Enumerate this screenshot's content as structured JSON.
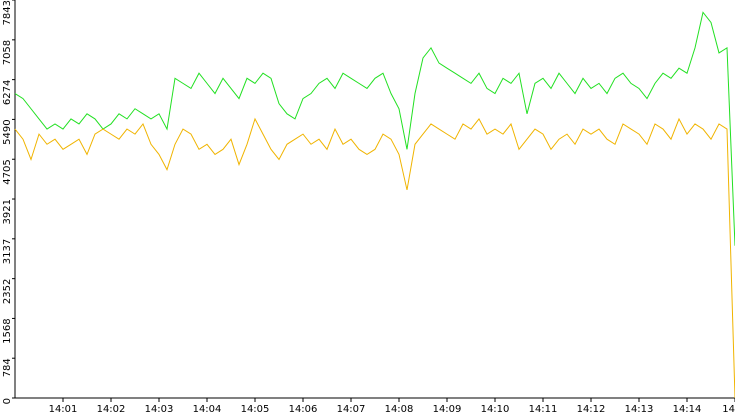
{
  "chart_data": {
    "type": "line",
    "x": [
      0,
      10,
      20,
      30,
      40,
      50,
      60,
      70,
      80,
      90,
      100,
      110,
      120,
      130,
      140,
      150,
      160,
      170,
      180,
      190,
      200,
      210,
      220,
      230,
      240,
      250,
      260,
      270,
      280,
      290,
      300,
      310,
      320,
      330,
      340,
      350,
      360,
      370,
      380,
      390,
      400,
      410,
      420,
      430,
      440,
      450,
      460,
      470,
      480,
      490,
      500,
      510,
      520,
      530,
      540,
      550,
      560,
      570,
      580,
      590,
      600,
      610,
      620,
      630,
      640,
      650,
      660,
      670,
      680,
      690,
      700,
      710,
      720,
      730,
      740,
      750,
      760,
      770,
      780,
      790,
      800,
      810,
      820,
      830,
      840,
      850,
      860,
      870,
      880,
      890,
      900
    ],
    "series": [
      {
        "color": "#22e022",
        "values": [
          6000,
          5900,
          5700,
          5500,
          5300,
          5400,
          5300,
          5500,
          5400,
          5600,
          5500,
          5300,
          5400,
          5600,
          5500,
          5700,
          5600,
          5500,
          5600,
          5300,
          6300,
          6200,
          6100,
          6400,
          6200,
          6000,
          6300,
          6100,
          5900,
          6300,
          6200,
          6400,
          6300,
          5800,
          5600,
          5500,
          5900,
          6000,
          6200,
          6300,
          6100,
          6400,
          6300,
          6200,
          6100,
          6300,
          6400,
          6000,
          5700,
          4900,
          6000,
          6700,
          6900,
          6600,
          6500,
          6400,
          6300,
          6200,
          6400,
          6100,
          6000,
          6300,
          6200,
          6400,
          5600,
          6200,
          6300,
          6100,
          6400,
          6200,
          6000,
          6300,
          6100,
          6200,
          6000,
          6300,
          6400,
          6200,
          6100,
          5900,
          6200,
          6400,
          6300,
          6500,
          6400,
          6900,
          7600,
          7400,
          6800,
          6900,
          3000
        ]
      },
      {
        "color": "#f0b400",
        "values": [
          5300,
          5100,
          4700,
          5200,
          5000,
          5100,
          4900,
          5000,
          5100,
          4800,
          5200,
          5300,
          5200,
          5100,
          5300,
          5200,
          5400,
          5000,
          4800,
          4500,
          5000,
          5300,
          5200,
          4900,
          5000,
          4800,
          4900,
          5100,
          4600,
          5000,
          5500,
          5200,
          4900,
          4700,
          5000,
          5100,
          5200,
          5000,
          5100,
          4900,
          5300,
          5000,
          5100,
          4900,
          4800,
          4900,
          5200,
          5100,
          4800,
          4100,
          5000,
          5200,
          5400,
          5300,
          5200,
          5100,
          5400,
          5300,
          5500,
          5200,
          5300,
          5200,
          5400,
          4900,
          5100,
          5300,
          5200,
          4900,
          5100,
          5200,
          5000,
          5300,
          5200,
          5300,
          5100,
          5000,
          5400,
          5300,
          5200,
          5000,
          5400,
          5300,
          5100,
          5500,
          5200,
          5400,
          5300,
          5100,
          5400,
          5300,
          0
        ]
      }
    ],
    "xlim": [
      0,
      900
    ],
    "xticks": [
      {
        "value": 60,
        "label": "14:01"
      },
      {
        "value": 120,
        "label": "14:02"
      },
      {
        "value": 180,
        "label": "14:03"
      },
      {
        "value": 240,
        "label": "14:04"
      },
      {
        "value": 300,
        "label": "14:05"
      },
      {
        "value": 360,
        "label": "14:06"
      },
      {
        "value": 420,
        "label": "14:07"
      },
      {
        "value": 480,
        "label": "14:08"
      },
      {
        "value": 540,
        "label": "14:09"
      },
      {
        "value": 600,
        "label": "14:10"
      },
      {
        "value": 660,
        "label": "14:11"
      },
      {
        "value": 720,
        "label": "14:12"
      },
      {
        "value": 780,
        "label": "14:13"
      },
      {
        "value": 840,
        "label": "14:14"
      },
      {
        "value": 900,
        "label": "14"
      }
    ],
    "ylim": [
      0,
      7843
    ],
    "yticks": [
      0,
      784,
      1568,
      2352,
      3137,
      3921,
      4705,
      5490,
      6274,
      7058,
      7843
    ]
  }
}
